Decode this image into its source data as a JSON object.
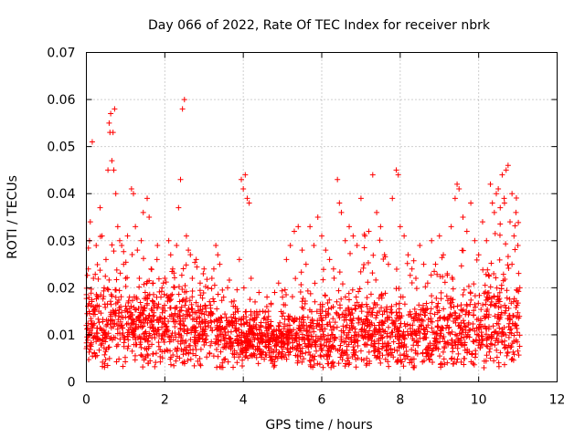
{
  "chart_data": {
    "type": "scatter",
    "title": "Day 066 of 2022, Rate Of TEC Index for receiver nbrk",
    "xlabel": "GPS time / hours",
    "ylabel": "ROTI / TECUs",
    "xlim": [
      0,
      12
    ],
    "ylim": [
      0,
      0.07
    ],
    "xticks": [
      0,
      2,
      4,
      6,
      8,
      10,
      12
    ],
    "yticks": [
      0,
      0.01,
      0.02,
      0.03,
      0.04,
      0.05,
      0.06,
      0.07
    ],
    "xtick_labels": [
      "0",
      "2",
      "4",
      "6",
      "8",
      "10",
      "12"
    ],
    "ytick_labels": [
      "0",
      "0.01",
      "0.02",
      "0.03",
      "0.04",
      "0.05",
      "0.06",
      "0.07"
    ],
    "grid": true,
    "marker": "+",
    "color": "#ff0000",
    "series": [
      {
        "name": "ROTI",
        "points": [
          [
            0.0,
            0.012
          ],
          [
            0.05,
            0.024
          ],
          [
            0.08,
            0.03
          ],
          [
            0.1,
            0.034
          ],
          [
            0.12,
            0.008
          ],
          [
            0.15,
            0.051
          ],
          [
            0.18,
            0.022
          ],
          [
            0.2,
            0.015
          ],
          [
            0.25,
            0.029
          ],
          [
            0.3,
            0.018
          ],
          [
            0.35,
            0.037
          ],
          [
            0.4,
            0.031
          ],
          [
            0.45,
            0.011
          ],
          [
            0.5,
            0.026
          ],
          [
            0.55,
            0.045
          ],
          [
            0.58,
            0.055
          ],
          [
            0.6,
            0.053
          ],
          [
            0.62,
            0.057
          ],
          [
            0.65,
            0.047
          ],
          [
            0.68,
            0.053
          ],
          [
            0.7,
            0.045
          ],
          [
            0.72,
            0.058
          ],
          [
            0.75,
            0.04
          ],
          [
            0.8,
            0.033
          ],
          [
            0.85,
            0.03
          ],
          [
            0.9,
            0.029
          ],
          [
            0.95,
            0.025
          ],
          [
            1.0,
            0.022
          ],
          [
            1.05,
            0.031
          ],
          [
            1.1,
            0.018
          ],
          [
            1.15,
            0.041
          ],
          [
            1.2,
            0.04
          ],
          [
            1.25,
            0.033
          ],
          [
            1.3,
            0.028
          ],
          [
            1.35,
            0.022
          ],
          [
            1.4,
            0.03
          ],
          [
            1.45,
            0.036
          ],
          [
            1.5,
            0.019
          ],
          [
            1.55,
            0.039
          ],
          [
            1.6,
            0.035
          ],
          [
            1.65,
            0.024
          ],
          [
            1.7,
            0.021
          ],
          [
            1.8,
            0.026
          ],
          [
            1.9,
            0.018
          ],
          [
            2.0,
            0.022
          ],
          [
            2.1,
            0.03
          ],
          [
            2.15,
            0.027
          ],
          [
            2.2,
            0.024
          ],
          [
            2.3,
            0.029
          ],
          [
            2.35,
            0.037
          ],
          [
            2.4,
            0.043
          ],
          [
            2.45,
            0.058
          ],
          [
            2.5,
            0.06
          ],
          [
            2.55,
            0.031
          ],
          [
            2.6,
            0.028
          ],
          [
            2.7,
            0.022
          ],
          [
            2.8,
            0.026
          ],
          [
            2.9,
            0.021
          ],
          [
            3.0,
            0.024
          ],
          [
            3.1,
            0.02
          ],
          [
            3.2,
            0.022
          ],
          [
            3.3,
            0.029
          ],
          [
            3.35,
            0.027
          ],
          [
            3.4,
            0.025
          ],
          [
            3.5,
            0.018
          ],
          [
            3.6,
            0.02
          ],
          [
            3.7,
            0.017
          ],
          [
            3.8,
            0.016
          ],
          [
            3.9,
            0.026
          ],
          [
            3.95,
            0.043
          ],
          [
            4.0,
            0.041
          ],
          [
            4.05,
            0.044
          ],
          [
            4.1,
            0.039
          ],
          [
            4.15,
            0.038
          ],
          [
            4.2,
            0.022
          ],
          [
            4.3,
            0.017
          ],
          [
            4.4,
            0.019
          ],
          [
            4.5,
            0.015
          ],
          [
            4.6,
            0.016
          ],
          [
            4.7,
            0.012
          ],
          [
            4.8,
            0.019
          ],
          [
            4.9,
            0.021
          ],
          [
            5.0,
            0.018
          ],
          [
            5.1,
            0.026
          ],
          [
            5.2,
            0.029
          ],
          [
            5.3,
            0.032
          ],
          [
            5.4,
            0.033
          ],
          [
            5.5,
            0.028
          ],
          [
            5.6,
            0.025
          ],
          [
            5.7,
            0.033
          ],
          [
            5.8,
            0.029
          ],
          [
            5.9,
            0.035
          ],
          [
            6.0,
            0.031
          ],
          [
            6.1,
            0.028
          ],
          [
            6.2,
            0.026
          ],
          [
            6.3,
            0.024
          ],
          [
            6.4,
            0.043
          ],
          [
            6.45,
            0.038
          ],
          [
            6.5,
            0.036
          ],
          [
            6.6,
            0.03
          ],
          [
            6.7,
            0.033
          ],
          [
            6.8,
            0.031
          ],
          [
            6.9,
            0.029
          ],
          [
            7.0,
            0.039
          ],
          [
            7.1,
            0.031
          ],
          [
            7.2,
            0.032
          ],
          [
            7.3,
            0.044
          ],
          [
            7.4,
            0.036
          ],
          [
            7.5,
            0.033
          ],
          [
            7.6,
            0.027
          ],
          [
            7.7,
            0.025
          ],
          [
            7.8,
            0.039
          ],
          [
            7.9,
            0.045
          ],
          [
            7.95,
            0.044
          ],
          [
            8.0,
            0.033
          ],
          [
            8.1,
            0.031
          ],
          [
            8.2,
            0.027
          ],
          [
            8.3,
            0.024
          ],
          [
            8.4,
            0.022
          ],
          [
            8.5,
            0.029
          ],
          [
            8.6,
            0.025
          ],
          [
            8.7,
            0.021
          ],
          [
            8.8,
            0.03
          ],
          [
            8.9,
            0.025
          ],
          [
            9.0,
            0.031
          ],
          [
            9.1,
            0.027
          ],
          [
            9.2,
            0.023
          ],
          [
            9.3,
            0.033
          ],
          [
            9.4,
            0.039
          ],
          [
            9.45,
            0.042
          ],
          [
            9.5,
            0.041
          ],
          [
            9.6,
            0.035
          ],
          [
            9.7,
            0.032
          ],
          [
            9.8,
            0.038
          ],
          [
            9.9,
            0.03
          ],
          [
            10.0,
            0.027
          ],
          [
            10.1,
            0.034
          ],
          [
            10.2,
            0.03
          ],
          [
            10.3,
            0.042
          ],
          [
            10.35,
            0.038
          ],
          [
            10.4,
            0.036
          ],
          [
            10.45,
            0.04
          ],
          [
            10.5,
            0.041
          ],
          [
            10.55,
            0.037
          ],
          [
            10.6,
            0.044
          ],
          [
            10.65,
            0.039
          ],
          [
            10.7,
            0.045
          ],
          [
            10.75,
            0.046
          ],
          [
            10.8,
            0.034
          ],
          [
            10.85,
            0.04
          ],
          [
            10.9,
            0.031
          ],
          [
            10.95,
            0.036
          ],
          [
            11.0,
            0.029
          ],
          [
            11.05,
            0.02
          ]
        ]
      }
    ],
    "dense_band": {
      "description_free_density_model": true,
      "x_start": 0.0,
      "x_end": 11.05,
      "count": 2400,
      "seed": 66,
      "baseline_y": [
        [
          0.0,
          0.011
        ],
        [
          1.0,
          0.012
        ],
        [
          2.0,
          0.011
        ],
        [
          3.0,
          0.011
        ],
        [
          4.0,
          0.009
        ],
        [
          4.6,
          0.0085
        ],
        [
          5.0,
          0.009
        ],
        [
          6.0,
          0.01
        ],
        [
          7.0,
          0.011
        ],
        [
          8.0,
          0.01
        ],
        [
          9.0,
          0.01
        ],
        [
          10.0,
          0.011
        ],
        [
          10.5,
          0.014
        ],
        [
          11.05,
          0.012
        ]
      ],
      "min_y": 0.003,
      "spread_y": [
        [
          0.0,
          0.01
        ],
        [
          1.0,
          0.009
        ],
        [
          2.0,
          0.009
        ],
        [
          3.0,
          0.008
        ],
        [
          4.0,
          0.006
        ],
        [
          4.6,
          0.005
        ],
        [
          5.0,
          0.006
        ],
        [
          6.0,
          0.008
        ],
        [
          7.0,
          0.009
        ],
        [
          8.0,
          0.008
        ],
        [
          9.0,
          0.009
        ],
        [
          10.0,
          0.009
        ],
        [
          10.5,
          0.012
        ],
        [
          11.05,
          0.01
        ]
      ]
    }
  }
}
